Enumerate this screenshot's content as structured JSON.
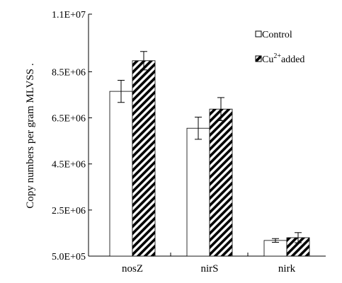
{
  "chart_data": {
    "type": "bar",
    "categories": [
      "nosZ",
      "nirS",
      "nirk"
    ],
    "series": [
      {
        "name": "Control",
        "values": [
          7650000,
          6050000,
          1180000
        ],
        "errors": [
          480000,
          480000,
          80000
        ],
        "fill": "#ffffff"
      },
      {
        "name": "Cu²⁺added",
        "values": [
          8980000,
          6880000,
          1300000
        ],
        "errors": [
          400000,
          500000,
          220000
        ],
        "fill": "hatch"
      }
    ],
    "title": "",
    "xlabel": "",
    "ylabel": "Copy numbers per gram MLVSS",
    "ylabel_suffix": ".",
    "ylim": [
      500000,
      11000000
    ],
    "yticks": [
      500000,
      2500000,
      4500000,
      6500000,
      8500000,
      11000000
    ],
    "ytick_labels": [
      "5.0E+05",
      "2.5E+06",
      "4.5E+06",
      "6.5E+06",
      "8.5E+06",
      "1.1E+07"
    ],
    "grid": false,
    "legend_position": "top-right",
    "legend": {
      "control_label": "Control",
      "cu_label_prefix": "Cu",
      "cu_label_superscript": "2+",
      "cu_label_suffix": "added"
    }
  }
}
